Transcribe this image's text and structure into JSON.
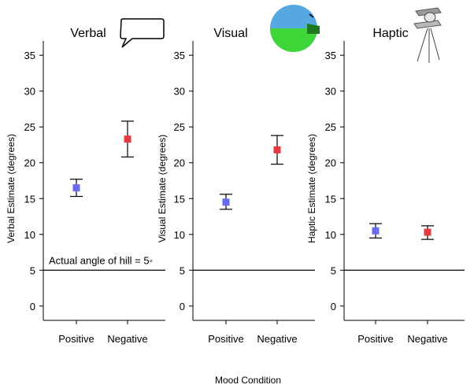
{
  "chart_data": [
    {
      "type": "scatter",
      "title": "Verbal",
      "ylabel": "Verbal Estimate (degrees)",
      "xlabel": "Mood Condition",
      "categories": [
        "Positive",
        "Negative"
      ],
      "ylim": [
        -2,
        37
      ],
      "yticks": [
        0,
        5,
        10,
        15,
        20,
        25,
        30,
        35
      ],
      "points": [
        {
          "category": "Positive",
          "mean": 16.5,
          "err_low": 15.3,
          "err_high": 17.7,
          "color": "#6a6af0"
        },
        {
          "category": "Negative",
          "mean": 23.3,
          "err_low": 20.8,
          "err_high": 25.8,
          "color": "#e53a3f"
        }
      ],
      "reference_line": 5,
      "annotation": "Actual angle of hill = 5◦",
      "icon": "speech-bubble-icon"
    },
    {
      "type": "scatter",
      "title": "Visual",
      "ylabel": "Visual Estimate (degrees)",
      "xlabel": "Mood Condition",
      "categories": [
        "Positive",
        "Negative"
      ],
      "ylim": [
        -2,
        37
      ],
      "yticks": [
        0,
        5,
        10,
        15,
        20,
        25,
        30,
        35
      ],
      "points": [
        {
          "category": "Positive",
          "mean": 14.5,
          "err_low": 13.5,
          "err_high": 15.6,
          "color": "#6a6af0"
        },
        {
          "category": "Negative",
          "mean": 21.8,
          "err_low": 19.8,
          "err_high": 23.8,
          "color": "#e53a3f"
        }
      ],
      "reference_line": 5,
      "icon": "visual-disk-icon"
    },
    {
      "type": "scatter",
      "title": "Haptic",
      "ylabel": "Haptic Estimate (degrees)",
      "xlabel": "Mood Condition",
      "categories": [
        "Positive",
        "Negative"
      ],
      "ylim": [
        -2,
        37
      ],
      "yticks": [
        0,
        5,
        10,
        15,
        20,
        25,
        30,
        35
      ],
      "points": [
        {
          "category": "Positive",
          "mean": 10.5,
          "err_low": 9.5,
          "err_high": 11.5,
          "color": "#6a6af0"
        },
        {
          "category": "Negative",
          "mean": 10.3,
          "err_low": 9.3,
          "err_high": 11.2,
          "color": "#e53a3f"
        }
      ],
      "reference_line": 5,
      "icon": "haptic-board-icon"
    }
  ],
  "shared_xlabel": "Mood Condition"
}
